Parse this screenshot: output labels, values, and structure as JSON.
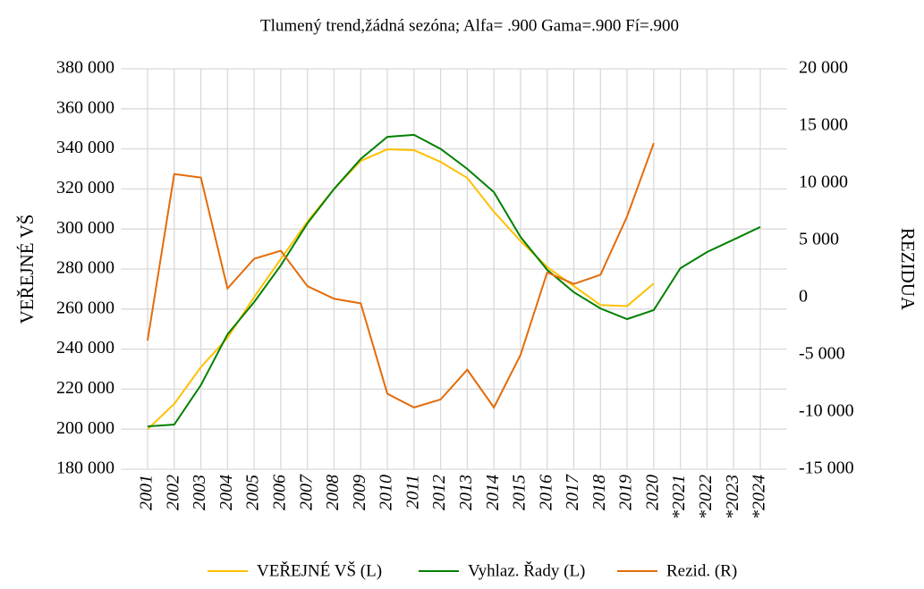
{
  "chart_data": {
    "type": "line",
    "title": "Tlumený trend,žádná sezóna; Alfa=  .900 Gama=.900 Fí=.900",
    "y_label": "VEŘEJNÉ VŠ",
    "y2_label": "REZIDUA",
    "categories": [
      "2001",
      "2002",
      "2003",
      "2004",
      "2005",
      "2006",
      "2007",
      "2008",
      "2009",
      "2010",
      "2011",
      "2012",
      "2013",
      "2014",
      "2015",
      "2016",
      "2017",
      "2018",
      "2019",
      "2020",
      "*2021",
      "*2022",
      "*2023",
      "*2024"
    ],
    "series": [
      {
        "name": "VEŘEJNÉ VŠ (L)",
        "color": "#ffc000",
        "axis": "y",
        "values": [
          200000,
          212600,
          231000,
          245600,
          266000,
          285000,
          303700,
          320000,
          334000,
          339800,
          339400,
          333500,
          325500,
          308600,
          294000,
          281000,
          271500,
          262000,
          261500,
          272800,
          null,
          null,
          null,
          null
        ]
      },
      {
        "name": "Vyhlaz. Řady (L)",
        "color": "#008000",
        "axis": "y",
        "values": [
          201400,
          202300,
          222000,
          247400,
          263500,
          281800,
          302800,
          320000,
          335000,
          346000,
          347000,
          340000,
          330000,
          318400,
          296000,
          279600,
          268400,
          260300,
          255000,
          259500,
          280400,
          288500,
          294700,
          301000
        ]
      },
      {
        "name": "Rezid. (R)",
        "color": "#e36c0a",
        "axis": "y2",
        "values": [
          -3750,
          10800,
          10500,
          800,
          3400,
          4100,
          1000,
          -100,
          -500,
          -8400,
          -9600,
          -8900,
          -6300,
          -9600,
          -5000,
          2200,
          1200,
          2000,
          7100,
          13500,
          null,
          null,
          null,
          null
        ]
      }
    ],
    "ylim": [
      180000,
      380000
    ],
    "yticks": [
      {
        "value": 180000,
        "label": "180 000"
      },
      {
        "value": 200000,
        "label": "200 000"
      },
      {
        "value": 220000,
        "label": "220 000"
      },
      {
        "value": 240000,
        "label": "240 000"
      },
      {
        "value": 260000,
        "label": "260 000"
      },
      {
        "value": 280000,
        "label": "280 000"
      },
      {
        "value": 300000,
        "label": "300 000"
      },
      {
        "value": 320000,
        "label": "320 000"
      },
      {
        "value": 340000,
        "label": "340 000"
      },
      {
        "value": 360000,
        "label": "360 000"
      },
      {
        "value": 380000,
        "label": "380 000"
      }
    ],
    "y2lim": [
      -15000,
      20000
    ],
    "y2ticks": [
      {
        "value": -15000,
        "label": "-15 000"
      },
      {
        "value": -10000,
        "label": "-10 000"
      },
      {
        "value": -5000,
        "label": "-5 000"
      },
      0,
      {
        "value": 5000,
        "label": "5 000"
      },
      {
        "value": 10000,
        "label": "10 000"
      },
      {
        "value": 15000,
        "label": "15 000"
      },
      {
        "value": 20000,
        "label": "20 000"
      }
    ],
    "grid": true,
    "legend": "bottom"
  }
}
